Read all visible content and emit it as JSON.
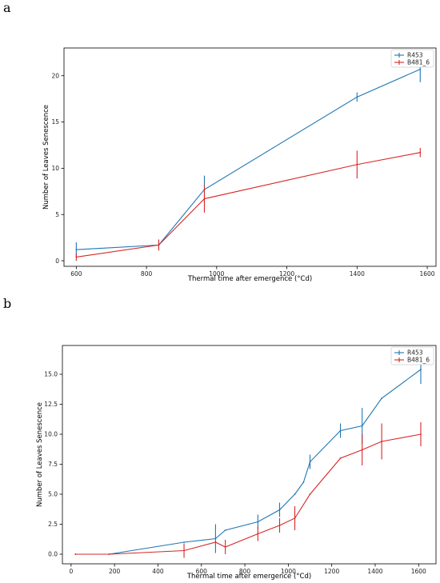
{
  "panels": {
    "a": {
      "label": "a"
    },
    "b": {
      "label": "b"
    }
  },
  "colors": {
    "R453": "#1f77b4",
    "B481_6": "#d62728"
  },
  "chart_data": [
    {
      "type": "line",
      "panel": "a",
      "xlabel": "Thermal time after emergence (°Cd)",
      "ylabel": "Number of Leaves Senescence",
      "xlim": [
        565,
        1625
      ],
      "ylim": [
        -0.6,
        23
      ],
      "xticks": [
        600,
        800,
        1000,
        1200,
        1400,
        1600
      ],
      "yticks": [
        0,
        5,
        10,
        15,
        20
      ],
      "ytick_labels": [
        "0",
        "5",
        "10",
        "15",
        "20"
      ],
      "legend": "top-right",
      "grid": false,
      "series": [
        {
          "name": "R453",
          "x": [
            600,
            835,
            965,
            1400,
            1580
          ],
          "y": [
            1.2,
            1.7,
            7.7,
            17.7,
            20.7
          ],
          "err": [
            0.8,
            0.4,
            1.5,
            0.5,
            1.4
          ]
        },
        {
          "name": "B481_6",
          "x": [
            600,
            835,
            965,
            1400,
            1580
          ],
          "y": [
            0.4,
            1.7,
            6.7,
            10.4,
            11.7
          ],
          "err": [
            0.4,
            0.6,
            1.5,
            1.5,
            0.5
          ]
        }
      ]
    },
    {
      "type": "line",
      "panel": "b",
      "xlabel": "Thermal time after emergence (°Cd)",
      "ylabel": "Number of Leaves Senescence",
      "xlim": [
        -40,
        1680
      ],
      "ylim": [
        -0.8,
        17.4
      ],
      "xticks": [
        0,
        200,
        400,
        600,
        800,
        1000,
        1200,
        1400,
        1600
      ],
      "yticks": [
        0,
        2.5,
        5,
        7.5,
        10,
        12.5,
        15
      ],
      "ytick_labels": [
        "0.0",
        "2.5",
        "5.0",
        "7.5",
        "10.0",
        "12.5",
        "15.0"
      ],
      "legend": "top-right",
      "grid": false,
      "series": [
        {
          "name": "R453",
          "x": [
            20,
            175,
            520,
            665,
            710,
            860,
            960,
            1030,
            1070,
            1100,
            1240,
            1340,
            1430,
            1610
          ],
          "y": [
            0,
            0,
            1.0,
            1.3,
            2.0,
            2.7,
            3.7,
            5.0,
            6.0,
            7.7,
            10.3,
            10.7,
            13.0,
            15.4
          ],
          "err": [
            0,
            0,
            0,
            1.2,
            0,
            0.6,
            0.6,
            0,
            0,
            0.6,
            0.6,
            1.5,
            0,
            1.2
          ]
        },
        {
          "name": "B481_6",
          "x": [
            20,
            175,
            520,
            665,
            710,
            860,
            960,
            1030,
            1100,
            1240,
            1340,
            1430,
            1610
          ],
          "y": [
            0,
            0,
            0.3,
            1.0,
            0.6,
            1.7,
            2.4,
            3.0,
            5.0,
            8.0,
            8.7,
            9.4,
            10.0
          ],
          "err": [
            0,
            0,
            0.6,
            0,
            0.6,
            0.6,
            0.6,
            1.0,
            0,
            0,
            1.3,
            1.5,
            1.0
          ]
        }
      ]
    }
  ]
}
